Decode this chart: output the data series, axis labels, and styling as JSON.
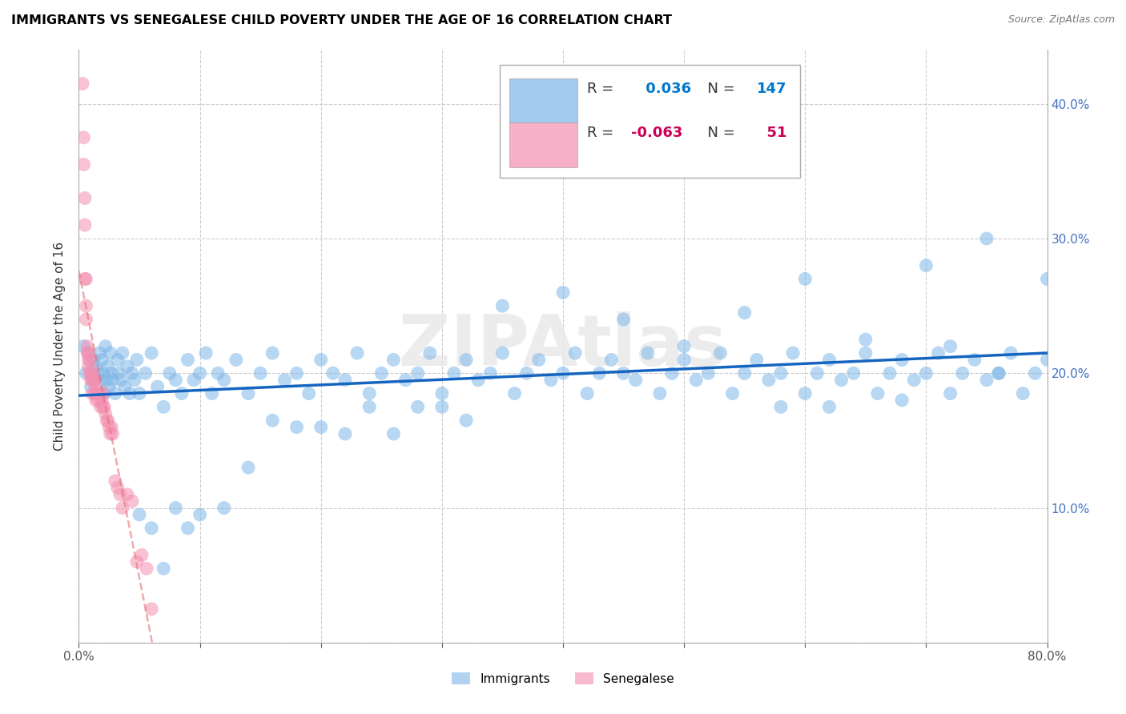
{
  "title": "IMMIGRANTS VS SENEGALESE CHILD POVERTY UNDER THE AGE OF 16 CORRELATION CHART",
  "source": "Source: ZipAtlas.com",
  "ylabel": "Child Poverty Under the Age of 16",
  "xlim": [
    0.0,
    0.8
  ],
  "ylim": [
    0.0,
    0.44
  ],
  "x_ticks": [
    0.0,
    0.1,
    0.2,
    0.3,
    0.4,
    0.5,
    0.6,
    0.7,
    0.8
  ],
  "y_ticks": [
    0.0,
    0.1,
    0.2,
    0.3,
    0.4
  ],
  "immigrants_color": "#7EB6E8",
  "senegalese_color": "#F48FB1",
  "immigrants_line_color": "#1565C0",
  "senegalese_line_color": "#E57373",
  "immigrants_R": 0.036,
  "immigrants_N": 147,
  "senegalese_R": -0.063,
  "senegalese_N": 51,
  "watermark": "ZIPAtlas",
  "immigrants_x": [
    0.004,
    0.006,
    0.008,
    0.01,
    0.012,
    0.013,
    0.014,
    0.015,
    0.016,
    0.017,
    0.018,
    0.019,
    0.02,
    0.021,
    0.022,
    0.023,
    0.024,
    0.025,
    0.026,
    0.027,
    0.028,
    0.03,
    0.032,
    0.033,
    0.035,
    0.036,
    0.038,
    0.04,
    0.042,
    0.044,
    0.046,
    0.048,
    0.05,
    0.055,
    0.06,
    0.065,
    0.07,
    0.075,
    0.08,
    0.085,
    0.09,
    0.095,
    0.1,
    0.105,
    0.11,
    0.115,
    0.12,
    0.13,
    0.14,
    0.15,
    0.16,
    0.17,
    0.18,
    0.19,
    0.2,
    0.21,
    0.22,
    0.23,
    0.24,
    0.25,
    0.26,
    0.27,
    0.28,
    0.29,
    0.3,
    0.31,
    0.32,
    0.33,
    0.34,
    0.35,
    0.36,
    0.37,
    0.38,
    0.39,
    0.4,
    0.41,
    0.42,
    0.43,
    0.44,
    0.45,
    0.46,
    0.47,
    0.48,
    0.49,
    0.5,
    0.51,
    0.52,
    0.53,
    0.54,
    0.55,
    0.56,
    0.57,
    0.58,
    0.59,
    0.6,
    0.61,
    0.62,
    0.63,
    0.64,
    0.65,
    0.66,
    0.67,
    0.68,
    0.69,
    0.7,
    0.71,
    0.72,
    0.73,
    0.74,
    0.75,
    0.76,
    0.77,
    0.78,
    0.79,
    0.8,
    0.35,
    0.4,
    0.45,
    0.5,
    0.55,
    0.6,
    0.65,
    0.7,
    0.75,
    0.8,
    0.58,
    0.62,
    0.72,
    0.76,
    0.68,
    0.3,
    0.32,
    0.28,
    0.26,
    0.24,
    0.22,
    0.2,
    0.18,
    0.16,
    0.14,
    0.12,
    0.1,
    0.09,
    0.08,
    0.07,
    0.06,
    0.05
  ],
  "immigrants_y": [
    0.22,
    0.2,
    0.215,
    0.19,
    0.21,
    0.195,
    0.205,
    0.185,
    0.2,
    0.215,
    0.195,
    0.21,
    0.2,
    0.185,
    0.22,
    0.195,
    0.205,
    0.19,
    0.215,
    0.2,
    0.195,
    0.185,
    0.21,
    0.2,
    0.195,
    0.215,
    0.19,
    0.205,
    0.185,
    0.2,
    0.195,
    0.21,
    0.185,
    0.2,
    0.215,
    0.19,
    0.175,
    0.2,
    0.195,
    0.185,
    0.21,
    0.195,
    0.2,
    0.215,
    0.185,
    0.2,
    0.195,
    0.21,
    0.185,
    0.2,
    0.215,
    0.195,
    0.2,
    0.185,
    0.21,
    0.2,
    0.195,
    0.215,
    0.185,
    0.2,
    0.21,
    0.195,
    0.2,
    0.215,
    0.185,
    0.2,
    0.21,
    0.195,
    0.2,
    0.215,
    0.185,
    0.2,
    0.21,
    0.195,
    0.2,
    0.215,
    0.185,
    0.2,
    0.21,
    0.2,
    0.195,
    0.215,
    0.185,
    0.2,
    0.21,
    0.195,
    0.2,
    0.215,
    0.185,
    0.2,
    0.21,
    0.195,
    0.2,
    0.215,
    0.185,
    0.2,
    0.21,
    0.195,
    0.2,
    0.215,
    0.185,
    0.2,
    0.21,
    0.195,
    0.2,
    0.215,
    0.185,
    0.2,
    0.21,
    0.195,
    0.2,
    0.215,
    0.185,
    0.2,
    0.21,
    0.25,
    0.26,
    0.24,
    0.22,
    0.245,
    0.27,
    0.225,
    0.28,
    0.3,
    0.27,
    0.175,
    0.175,
    0.22,
    0.2,
    0.18,
    0.175,
    0.165,
    0.175,
    0.155,
    0.175,
    0.155,
    0.16,
    0.16,
    0.165,
    0.13,
    0.1,
    0.095,
    0.085,
    0.1,
    0.055,
    0.085,
    0.095
  ],
  "senegalese_x": [
    0.003,
    0.004,
    0.004,
    0.005,
    0.005,
    0.005,
    0.006,
    0.006,
    0.006,
    0.007,
    0.007,
    0.008,
    0.008,
    0.008,
    0.009,
    0.009,
    0.01,
    0.01,
    0.011,
    0.011,
    0.012,
    0.012,
    0.013,
    0.013,
    0.014,
    0.014,
    0.015,
    0.016,
    0.017,
    0.018,
    0.019,
    0.02,
    0.02,
    0.021,
    0.022,
    0.023,
    0.024,
    0.025,
    0.026,
    0.027,
    0.028,
    0.03,
    0.032,
    0.034,
    0.036,
    0.04,
    0.044,
    0.048,
    0.052,
    0.056,
    0.06
  ],
  "senegalese_y": [
    0.415,
    0.355,
    0.375,
    0.33,
    0.31,
    0.27,
    0.27,
    0.25,
    0.24,
    0.22,
    0.215,
    0.21,
    0.205,
    0.215,
    0.2,
    0.21,
    0.195,
    0.2,
    0.185,
    0.195,
    0.195,
    0.2,
    0.185,
    0.195,
    0.19,
    0.18,
    0.185,
    0.18,
    0.185,
    0.175,
    0.18,
    0.175,
    0.185,
    0.175,
    0.17,
    0.165,
    0.165,
    0.16,
    0.155,
    0.16,
    0.155,
    0.12,
    0.115,
    0.11,
    0.1,
    0.11,
    0.105,
    0.06,
    0.065,
    0.055,
    0.025
  ]
}
